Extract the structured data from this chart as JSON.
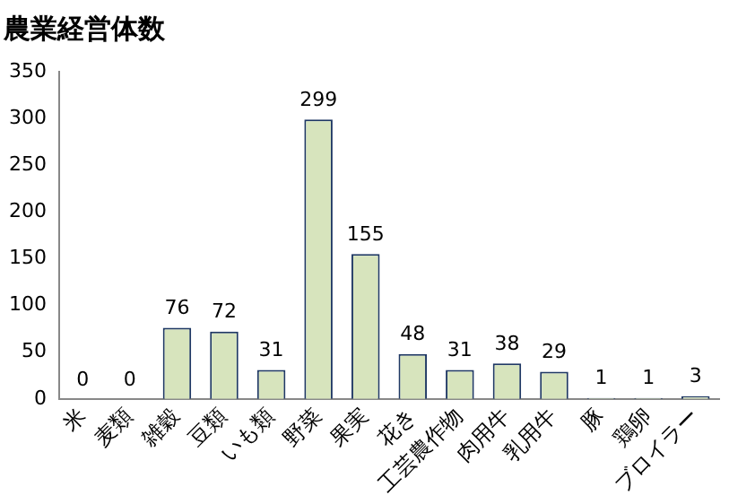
{
  "chart_data": {
    "type": "bar",
    "title": "農業経営体数",
    "categories": [
      "米",
      "麦類",
      "雑穀",
      "豆類",
      "いも類",
      "野菜",
      "果実",
      "花き",
      "工芸農作物",
      "肉用牛",
      "乳用牛",
      "豚",
      "鶏卵",
      "ブロイラー"
    ],
    "values": [
      0,
      0,
      76,
      72,
      31,
      299,
      155,
      48,
      31,
      38,
      29,
      1,
      1,
      3
    ],
    "color": "#d7e4bd",
    "ylim": [
      0,
      350
    ],
    "yticks": [
      0,
      50,
      100,
      150,
      200,
      250,
      300,
      350
    ],
    "data_labels": true,
    "grid": false,
    "legend": false
  }
}
